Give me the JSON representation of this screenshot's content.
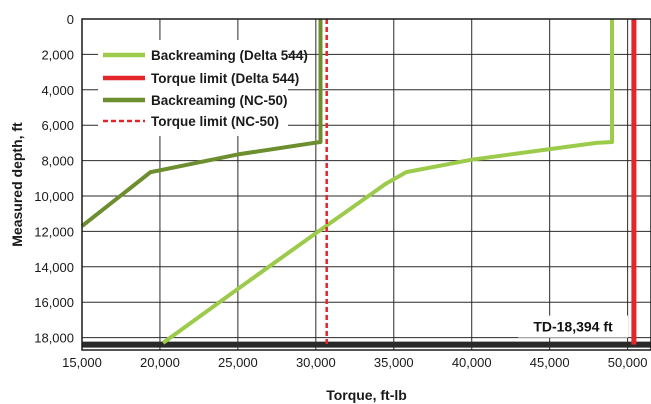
{
  "chart_data": {
    "type": "line",
    "xlabel": "Torque, ft-lb",
    "ylabel": "Measured depth, ft",
    "xlim": [
      15000,
      51500
    ],
    "ylim": [
      0,
      18700
    ],
    "y_inverted": true,
    "grid": true,
    "legend_position": "top-left",
    "x_ticks": [
      15000,
      20000,
      25000,
      30000,
      35000,
      40000,
      45000,
      50000
    ],
    "x_tick_labels": [
      "15,000",
      "20,000",
      "25,000",
      "30,000",
      "35,000",
      "40,000",
      "45,000",
      "50,000"
    ],
    "y_ticks": [
      0,
      2000,
      4000,
      6000,
      8000,
      10000,
      12000,
      14000,
      16000,
      18000
    ],
    "y_tick_labels": [
      "0",
      "2,000",
      "4,000",
      "6,000",
      "8,000",
      "10,000",
      "12,000",
      "14,000",
      "16,000",
      "18,000"
    ],
    "series": [
      {
        "name": "Backreaming (Delta 544)",
        "color": "#9ccb4b",
        "style": "solid",
        "points": [
          [
            49000,
            0
          ],
          [
            49000,
            6950
          ],
          [
            48000,
            7000
          ],
          [
            45000,
            7350
          ],
          [
            40000,
            7950
          ],
          [
            35800,
            8650
          ],
          [
            34500,
            9300
          ],
          [
            30000,
            12100
          ],
          [
            25000,
            15250
          ],
          [
            20200,
            18300
          ]
        ]
      },
      {
        "name": "Torque limit (Delta 544)",
        "color": "#e3262a",
        "style": "solid",
        "points": [
          [
            50400,
            0
          ],
          [
            50400,
            18394
          ]
        ]
      },
      {
        "name": "Backreaming (NC-50)",
        "color": "#6c8e2e",
        "style": "solid",
        "points": [
          [
            30300,
            0
          ],
          [
            30300,
            6950
          ],
          [
            29500,
            7050
          ],
          [
            25000,
            7650
          ],
          [
            20000,
            8550
          ],
          [
            19400,
            8650
          ],
          [
            15000,
            11700
          ]
        ]
      },
      {
        "name": "Torque limit (NC-50)",
        "color": "#e3262a",
        "style": "dashed",
        "points": [
          [
            30700,
            0
          ],
          [
            30700,
            18394
          ]
        ]
      }
    ],
    "td_line": {
      "depth": 18394,
      "label": "TD-18,394 ft",
      "color": "#2a2a2a"
    }
  }
}
